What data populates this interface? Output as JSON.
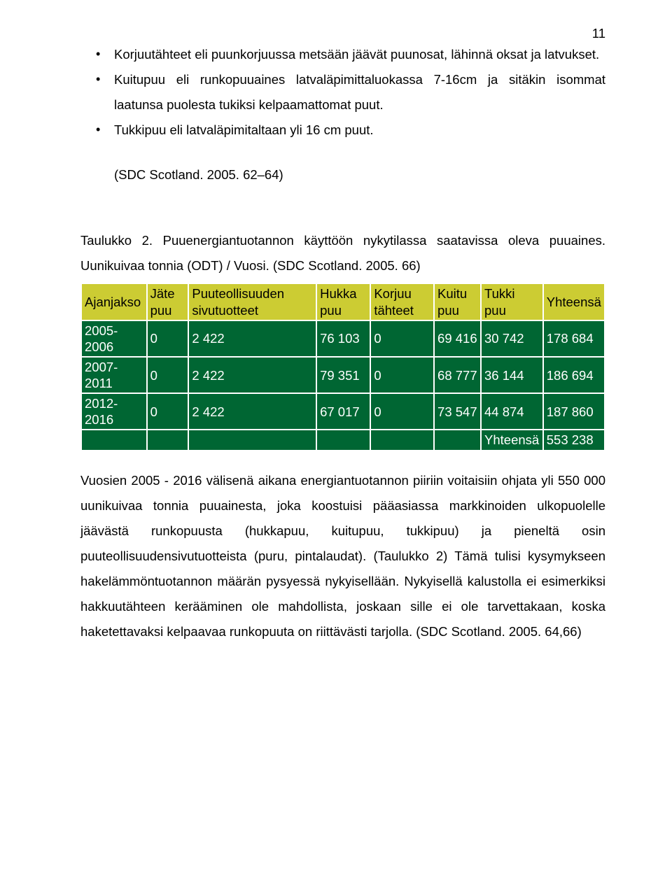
{
  "page_number": "11",
  "bullets": [
    "Korjuutähteet eli puunkorjuussa metsään jäävät puunosat, lähinnä oksat ja latvukset.",
    "Kuitupuu eli runkopuuaines latvaläpimittaluokassa 7-16cm ja sitäkin isommat laatunsa puolesta tukiksi kelpaamattomat puut.",
    "Tukkipuu eli latvaläpimitaltaan yli 16 cm puut."
  ],
  "sdc_cite": "(SDC Scotland. 2005. 62–64)",
  "caption": "Taulukko 2. Puuenergiantuotannon käyttöön nykytilassa saatavissa oleva puuaines. Uunikuivaa tonnia (ODT) / Vuosi. (SDC Scotland. 2005. 66)",
  "table": {
    "colors": {
      "header_bg": "#cccc33",
      "cell_bg": "#006633",
      "header_text": "#000000",
      "cell_text": "#ffffff",
      "page_bg": "#ffffff",
      "text": "#000000"
    },
    "headers": [
      "Ajanjakso",
      "Jäte puu",
      "Puuteollisuuden sivutuotteet",
      "Hukka puu",
      "Korjuu tähteet",
      "Kuitu puu",
      "Tukki puu",
      "Yhteensä"
    ],
    "rows": [
      [
        "2005-2006",
        "0",
        "2 422",
        "76 103",
        "0",
        "69 416",
        "30 742",
        "178 684"
      ],
      [
        "2007-2011",
        "0",
        "2 422",
        "79 351",
        "0",
        "68 777",
        "36 144",
        "186 694"
      ],
      [
        "2012-2016",
        "0",
        "2 422",
        "67 017",
        "0",
        "73 547",
        "44 874",
        "187 860"
      ]
    ],
    "footer": [
      "",
      "",
      "",
      "",
      "",
      "",
      "Yhteensä",
      "553 238"
    ]
  },
  "body_para": "Vuosien 2005 - 2016 välisenä aikana energiantuotannon piiriin voitaisiin ohjata yli 550 000 uunikuivaa tonnia puuainesta, joka koostuisi pääasiassa markkinoiden ulkopuolelle jäävästä runkopuusta (hukkapuu, kuitupuu, tukkipuu) ja pieneltä osin puuteollisuudensivutuotteista (puru, pintalaudat). (Taulukko 2) Tämä tulisi kysymykseen hakelämmöntuotannon määrän pysyessä nykyisellään. Nykyisellä kalustolla ei esimerkiksi hakkuutähteen kerääminen ole mahdollista, joskaan sille ei ole tarvettakaan, koska haketettavaksi kelpaavaa runkopuuta on riittävästi tarjolla. (SDC Scotland. 2005. 64,66)"
}
